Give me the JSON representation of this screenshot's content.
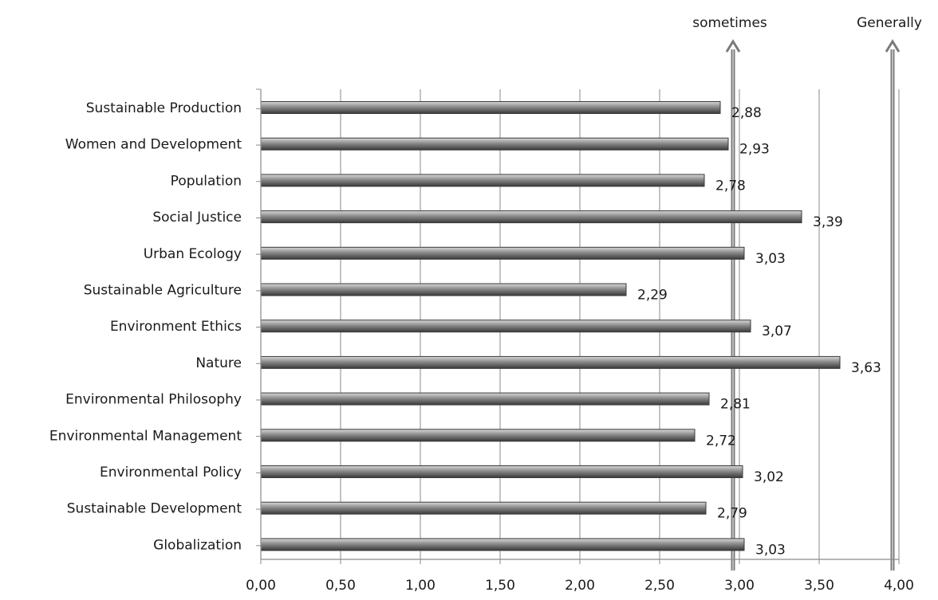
{
  "chart_data": {
    "type": "bar",
    "orientation": "horizontal",
    "categories": [
      "Sustainable Production",
      "Women and Development",
      "Population",
      "Social Justice",
      "Urban Ecology",
      "Sustainable Agriculture",
      "Environment Ethics",
      "Nature",
      "Environmental Philosophy",
      "Environmental Management",
      "Environmental Policy",
      "Sustainable Development",
      "Globalization"
    ],
    "values": [
      2.88,
      2.93,
      2.78,
      3.39,
      3.03,
      2.29,
      3.07,
      3.63,
      2.81,
      2.72,
      3.02,
      2.79,
      3.03
    ],
    "value_labels": [
      "2,88",
      "2,93",
      "2,78",
      "3,39",
      "3,03",
      "2,29",
      "3,07",
      "3,63",
      "2,81",
      "2,72",
      "3,02",
      "2,79",
      "3,03"
    ],
    "xlim": [
      0,
      4
    ],
    "x_ticks": [
      0,
      0.5,
      1,
      1.5,
      2,
      2.5,
      3,
      3.5,
      4
    ],
    "x_tick_labels": [
      "0,00",
      "0,50",
      "1,00",
      "1,50",
      "2,00",
      "2,50",
      "3,00",
      "3,50",
      "4,00"
    ],
    "vertical_gridlines": true,
    "reference_lines": [
      {
        "label": "sometimes",
        "x": 2.96
      },
      {
        "label": "Generally",
        "x": 3.96
      }
    ],
    "bar_color": "#7a7a7a",
    "title": "",
    "xlabel": "",
    "ylabel": "",
    "legend": "none"
  }
}
